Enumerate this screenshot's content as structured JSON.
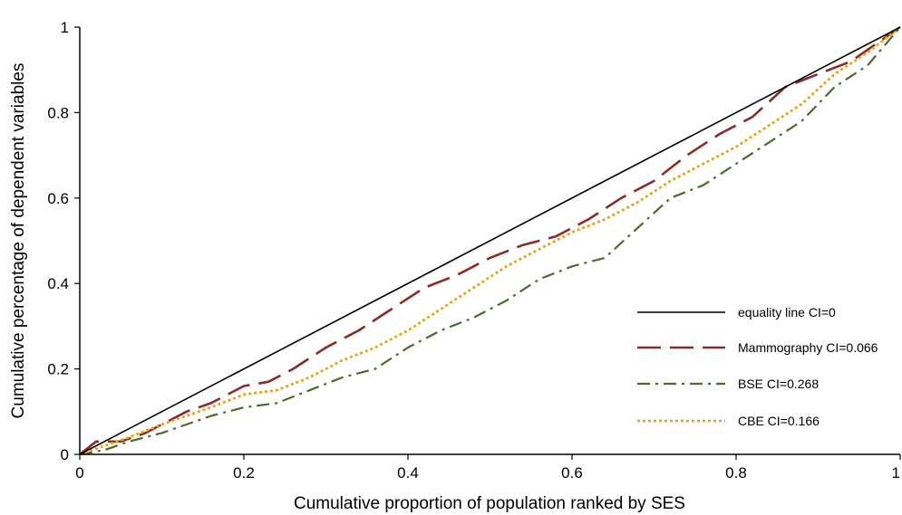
{
  "chart_data": {
    "type": "line",
    "title": "",
    "xlabel": "Cumulative proportion of population ranked by SES",
    "ylabel": "Cumulative percentage of dependent variables",
    "xlim": [
      0,
      1
    ],
    "ylim": [
      0,
      1
    ],
    "x_ticks": [
      0,
      0.2,
      0.4,
      0.6,
      0.8,
      1
    ],
    "x_tick_labels": [
      "0",
      "0.2",
      "0.4",
      "0.6",
      "0.8",
      "1"
    ],
    "y_ticks": [
      0,
      0.2,
      0.4,
      0.6,
      0.8,
      1
    ],
    "y_tick_labels": [
      "0",
      "0.2",
      "0.4",
      "0.6",
      "0.8",
      "1"
    ],
    "grid": false,
    "legend_position": "bottom-right",
    "series": [
      {
        "name": "equality line CI=0",
        "color": "#000000",
        "dash": "solid",
        "x": [
          0,
          1
        ],
        "y": [
          0,
          1
        ]
      },
      {
        "name": "Mammography CI=0.066",
        "color": "#8b2a2a",
        "dash": "long-dash",
        "x": [
          0,
          0.02,
          0.05,
          0.08,
          0.1,
          0.13,
          0.16,
          0.2,
          0.23,
          0.26,
          0.3,
          0.34,
          0.38,
          0.42,
          0.46,
          0.5,
          0.54,
          0.58,
          0.62,
          0.66,
          0.7,
          0.74,
          0.78,
          0.82,
          0.86,
          0.9,
          0.94,
          1.0
        ],
        "y": [
          0,
          0.03,
          0.03,
          0.05,
          0.07,
          0.1,
          0.12,
          0.16,
          0.17,
          0.2,
          0.25,
          0.29,
          0.34,
          0.39,
          0.42,
          0.46,
          0.49,
          0.51,
          0.55,
          0.6,
          0.64,
          0.7,
          0.75,
          0.79,
          0.86,
          0.89,
          0.92,
          1.0
        ]
      },
      {
        "name": "BSE CI=0.268",
        "color": "#4a6b2a",
        "dash": "dash-dot",
        "x": [
          0,
          0.03,
          0.06,
          0.1,
          0.13,
          0.16,
          0.2,
          0.24,
          0.28,
          0.32,
          0.36,
          0.4,
          0.44,
          0.48,
          0.52,
          0.56,
          0.6,
          0.64,
          0.68,
          0.72,
          0.76,
          0.8,
          0.84,
          0.88,
          0.92,
          0.96,
          1.0
        ],
        "y": [
          0,
          0.01,
          0.03,
          0.05,
          0.07,
          0.09,
          0.11,
          0.12,
          0.15,
          0.18,
          0.2,
          0.25,
          0.29,
          0.32,
          0.36,
          0.41,
          0.44,
          0.46,
          0.53,
          0.6,
          0.63,
          0.68,
          0.73,
          0.78,
          0.86,
          0.91,
          1.0
        ]
      },
      {
        "name": "CBE CI=0.166",
        "color": "#e8a317",
        "dash": "dotted",
        "x": [
          0,
          0.03,
          0.06,
          0.1,
          0.13,
          0.16,
          0.2,
          0.24,
          0.28,
          0.32,
          0.36,
          0.4,
          0.44,
          0.48,
          0.52,
          0.56,
          0.6,
          0.64,
          0.68,
          0.72,
          0.76,
          0.8,
          0.84,
          0.88,
          0.92,
          0.96,
          1.0
        ],
        "y": [
          0,
          0.02,
          0.04,
          0.07,
          0.09,
          0.11,
          0.14,
          0.15,
          0.18,
          0.22,
          0.25,
          0.29,
          0.34,
          0.39,
          0.44,
          0.48,
          0.52,
          0.55,
          0.59,
          0.64,
          0.68,
          0.72,
          0.77,
          0.82,
          0.89,
          0.94,
          1.0
        ]
      }
    ]
  }
}
